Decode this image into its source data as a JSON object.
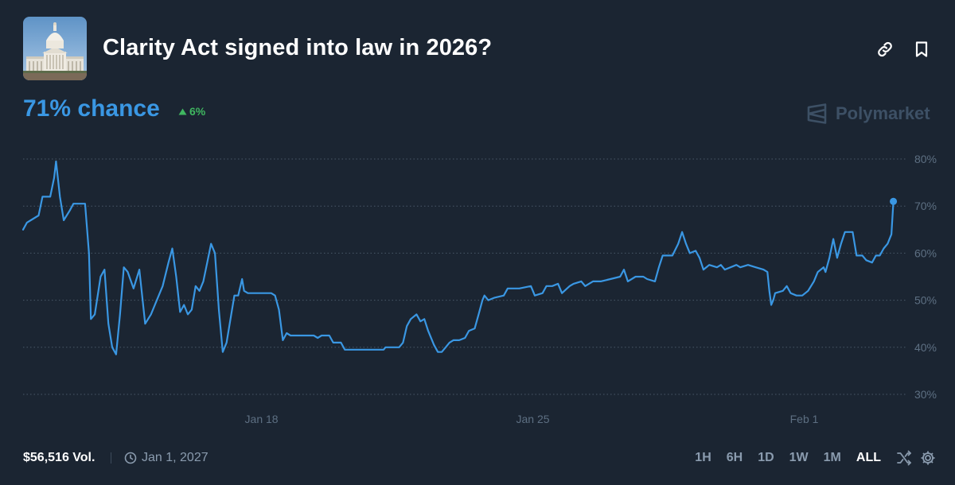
{
  "market": {
    "title": "Clarity Act signed into law in 2026?",
    "chance_label": "71% chance",
    "change": "6%",
    "change_direction": "up",
    "brand": "Polymarket",
    "thumbnail_icon": "us-capitol-image"
  },
  "header_icons": [
    "link-icon",
    "bookmark-icon"
  ],
  "footer": {
    "volume": "$56,516 Vol.",
    "end_date": "Jan 1, 2027",
    "ranges": [
      "1H",
      "6H",
      "1D",
      "1W",
      "1M",
      "ALL"
    ],
    "active_range": "ALL",
    "icons": [
      "shuffle-icon",
      "settings-icon"
    ]
  },
  "colors": {
    "background": "#1b2532",
    "accent": "#3a97e3",
    "positive": "#3fb760",
    "muted": "#8a9bae"
  },
  "chart_data": {
    "type": "line",
    "y_ticks": [
      "80%",
      "70%",
      "60%",
      "50%",
      "40%",
      "30%"
    ],
    "ylim": [
      30,
      80
    ],
    "x_ticks": [
      {
        "label": "Jan 18",
        "x": 7.75
      },
      {
        "label": "Jan 25",
        "x": 14.75
      },
      {
        "label": "Feb 1",
        "x": 21.75
      }
    ],
    "x_range": [
      1.6,
      24.1
    ],
    "grid": true,
    "series": [
      {
        "color": "#3a97e3",
        "points": [
          [
            1.6,
            65
          ],
          [
            1.7,
            66.5
          ],
          [
            1.9,
            67.5
          ],
          [
            2.0,
            68
          ],
          [
            2.1,
            72
          ],
          [
            2.3,
            72
          ],
          [
            2.4,
            76
          ],
          [
            2.45,
            79.5
          ],
          [
            2.55,
            72
          ],
          [
            2.65,
            67
          ],
          [
            2.8,
            69
          ],
          [
            2.9,
            70.5
          ],
          [
            3.2,
            70.5
          ],
          [
            3.3,
            60
          ],
          [
            3.35,
            46
          ],
          [
            3.45,
            47
          ],
          [
            3.6,
            55
          ],
          [
            3.7,
            56.5
          ],
          [
            3.8,
            45
          ],
          [
            3.9,
            40
          ],
          [
            4.0,
            38.5
          ],
          [
            4.1,
            47
          ],
          [
            4.2,
            57
          ],
          [
            4.3,
            56
          ],
          [
            4.45,
            52.5
          ],
          [
            4.6,
            56.5
          ],
          [
            4.75,
            45
          ],
          [
            4.9,
            47
          ],
          [
            5.0,
            49
          ],
          [
            5.2,
            53
          ],
          [
            5.35,
            58
          ],
          [
            5.45,
            61
          ],
          [
            5.55,
            55
          ],
          [
            5.65,
            47.5
          ],
          [
            5.75,
            49
          ],
          [
            5.85,
            47
          ],
          [
            5.95,
            48
          ],
          [
            6.05,
            53
          ],
          [
            6.15,
            52
          ],
          [
            6.25,
            54
          ],
          [
            6.35,
            58
          ],
          [
            6.45,
            62
          ],
          [
            6.55,
            60
          ],
          [
            6.65,
            48
          ],
          [
            6.75,
            39
          ],
          [
            6.85,
            41
          ],
          [
            6.95,
            46
          ],
          [
            7.05,
            51
          ],
          [
            7.15,
            51
          ],
          [
            7.25,
            54.5
          ],
          [
            7.3,
            52
          ],
          [
            7.4,
            51.5
          ],
          [
            8.0,
            51.5
          ],
          [
            8.1,
            51
          ],
          [
            8.2,
            48
          ],
          [
            8.3,
            41.5
          ],
          [
            8.4,
            43
          ],
          [
            8.5,
            42.5
          ],
          [
            9.1,
            42.5
          ],
          [
            9.2,
            42
          ],
          [
            9.3,
            42.5
          ],
          [
            9.5,
            42.5
          ],
          [
            9.6,
            41
          ],
          [
            9.8,
            41
          ],
          [
            9.9,
            39.5
          ],
          [
            10.7,
            39.5
          ],
          [
            10.9,
            39.5
          ],
          [
            10.95,
            40
          ],
          [
            11.3,
            40
          ],
          [
            11.4,
            41
          ],
          [
            11.5,
            44.5
          ],
          [
            11.6,
            46
          ],
          [
            11.75,
            47
          ],
          [
            11.85,
            45.5
          ],
          [
            11.95,
            46
          ],
          [
            12.05,
            43.5
          ],
          [
            12.2,
            40.5
          ],
          [
            12.3,
            39
          ],
          [
            12.4,
            39
          ],
          [
            12.5,
            40
          ],
          [
            12.6,
            41
          ],
          [
            12.7,
            41.5
          ],
          [
            12.85,
            41.5
          ],
          [
            13.0,
            42
          ],
          [
            13.1,
            43.5
          ],
          [
            13.25,
            44
          ],
          [
            13.35,
            47
          ],
          [
            13.45,
            50
          ],
          [
            13.5,
            51
          ],
          [
            13.6,
            50
          ],
          [
            13.75,
            50.5
          ],
          [
            14.0,
            51
          ],
          [
            14.1,
            52.5
          ],
          [
            14.4,
            52.5
          ],
          [
            14.7,
            53
          ],
          [
            14.8,
            51
          ],
          [
            15.0,
            51.5
          ],
          [
            15.1,
            53
          ],
          [
            15.25,
            53
          ],
          [
            15.4,
            53.5
          ],
          [
            15.5,
            51.5
          ],
          [
            15.7,
            53
          ],
          [
            15.8,
            53.5
          ],
          [
            16.0,
            54
          ],
          [
            16.1,
            53
          ],
          [
            16.3,
            54
          ],
          [
            16.5,
            54
          ],
          [
            16.75,
            54.5
          ],
          [
            17.0,
            55
          ],
          [
            17.1,
            56.5
          ],
          [
            17.2,
            54
          ],
          [
            17.4,
            55
          ],
          [
            17.6,
            55
          ],
          [
            17.7,
            54.5
          ],
          [
            17.9,
            54
          ],
          [
            18.0,
            57
          ],
          [
            18.1,
            59.5
          ],
          [
            18.35,
            59.5
          ],
          [
            18.5,
            62
          ],
          [
            18.6,
            64.5
          ],
          [
            18.7,
            62
          ],
          [
            18.8,
            60
          ],
          [
            18.95,
            60.5
          ],
          [
            19.05,
            59
          ],
          [
            19.15,
            56.5
          ],
          [
            19.3,
            57.5
          ],
          [
            19.5,
            57
          ],
          [
            19.6,
            57.5
          ],
          [
            19.7,
            56.5
          ],
          [
            20.0,
            57.5
          ],
          [
            20.1,
            57
          ],
          [
            20.3,
            57.5
          ],
          [
            20.5,
            57
          ],
          [
            20.7,
            56.5
          ],
          [
            20.8,
            56
          ],
          [
            20.85,
            52
          ],
          [
            20.9,
            49
          ],
          [
            20.95,
            50
          ],
          [
            21.0,
            51.5
          ],
          [
            21.2,
            52
          ],
          [
            21.3,
            53
          ],
          [
            21.4,
            51.5
          ],
          [
            21.55,
            51
          ],
          [
            21.7,
            51
          ],
          [
            21.85,
            52
          ],
          [
            22.0,
            54
          ],
          [
            22.1,
            56
          ],
          [
            22.25,
            57
          ],
          [
            22.3,
            56
          ],
          [
            22.4,
            59
          ],
          [
            22.5,
            63
          ],
          [
            22.6,
            59
          ],
          [
            22.7,
            62
          ],
          [
            22.8,
            64.5
          ],
          [
            23.0,
            64.5
          ],
          [
            23.1,
            59.5
          ],
          [
            23.25,
            59.5
          ],
          [
            23.35,
            58.5
          ],
          [
            23.5,
            58
          ],
          [
            23.6,
            59.5
          ],
          [
            23.7,
            59.5
          ],
          [
            23.8,
            61
          ],
          [
            23.9,
            62
          ],
          [
            24.0,
            64
          ],
          [
            24.05,
            71
          ]
        ]
      }
    ]
  }
}
